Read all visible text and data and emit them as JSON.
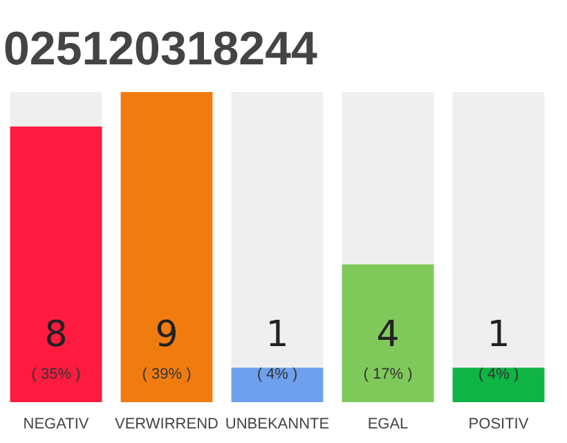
{
  "chart_data": {
    "type": "bar",
    "title": "025120318244",
    "categories": [
      "NEGATIV",
      "VERWIRREND",
      "UNBEKANNTE",
      "EGAL",
      "POSITIV"
    ],
    "values": [
      8,
      9,
      1,
      4,
      1
    ],
    "colors": [
      "#ff1a40",
      "#f07c10",
      "#6ea0ee",
      "#7ec95a",
      "#10b444"
    ],
    "value_labels": [
      "8",
      "9",
      "1",
      "4",
      "1"
    ],
    "annotations": [
      "( 35% )",
      "( 39% )",
      "( 4% )",
      "( 17% )",
      "( 4% )"
    ],
    "ylim": [
      0,
      9
    ],
    "tick_labels": "x",
    "grid": false
  }
}
